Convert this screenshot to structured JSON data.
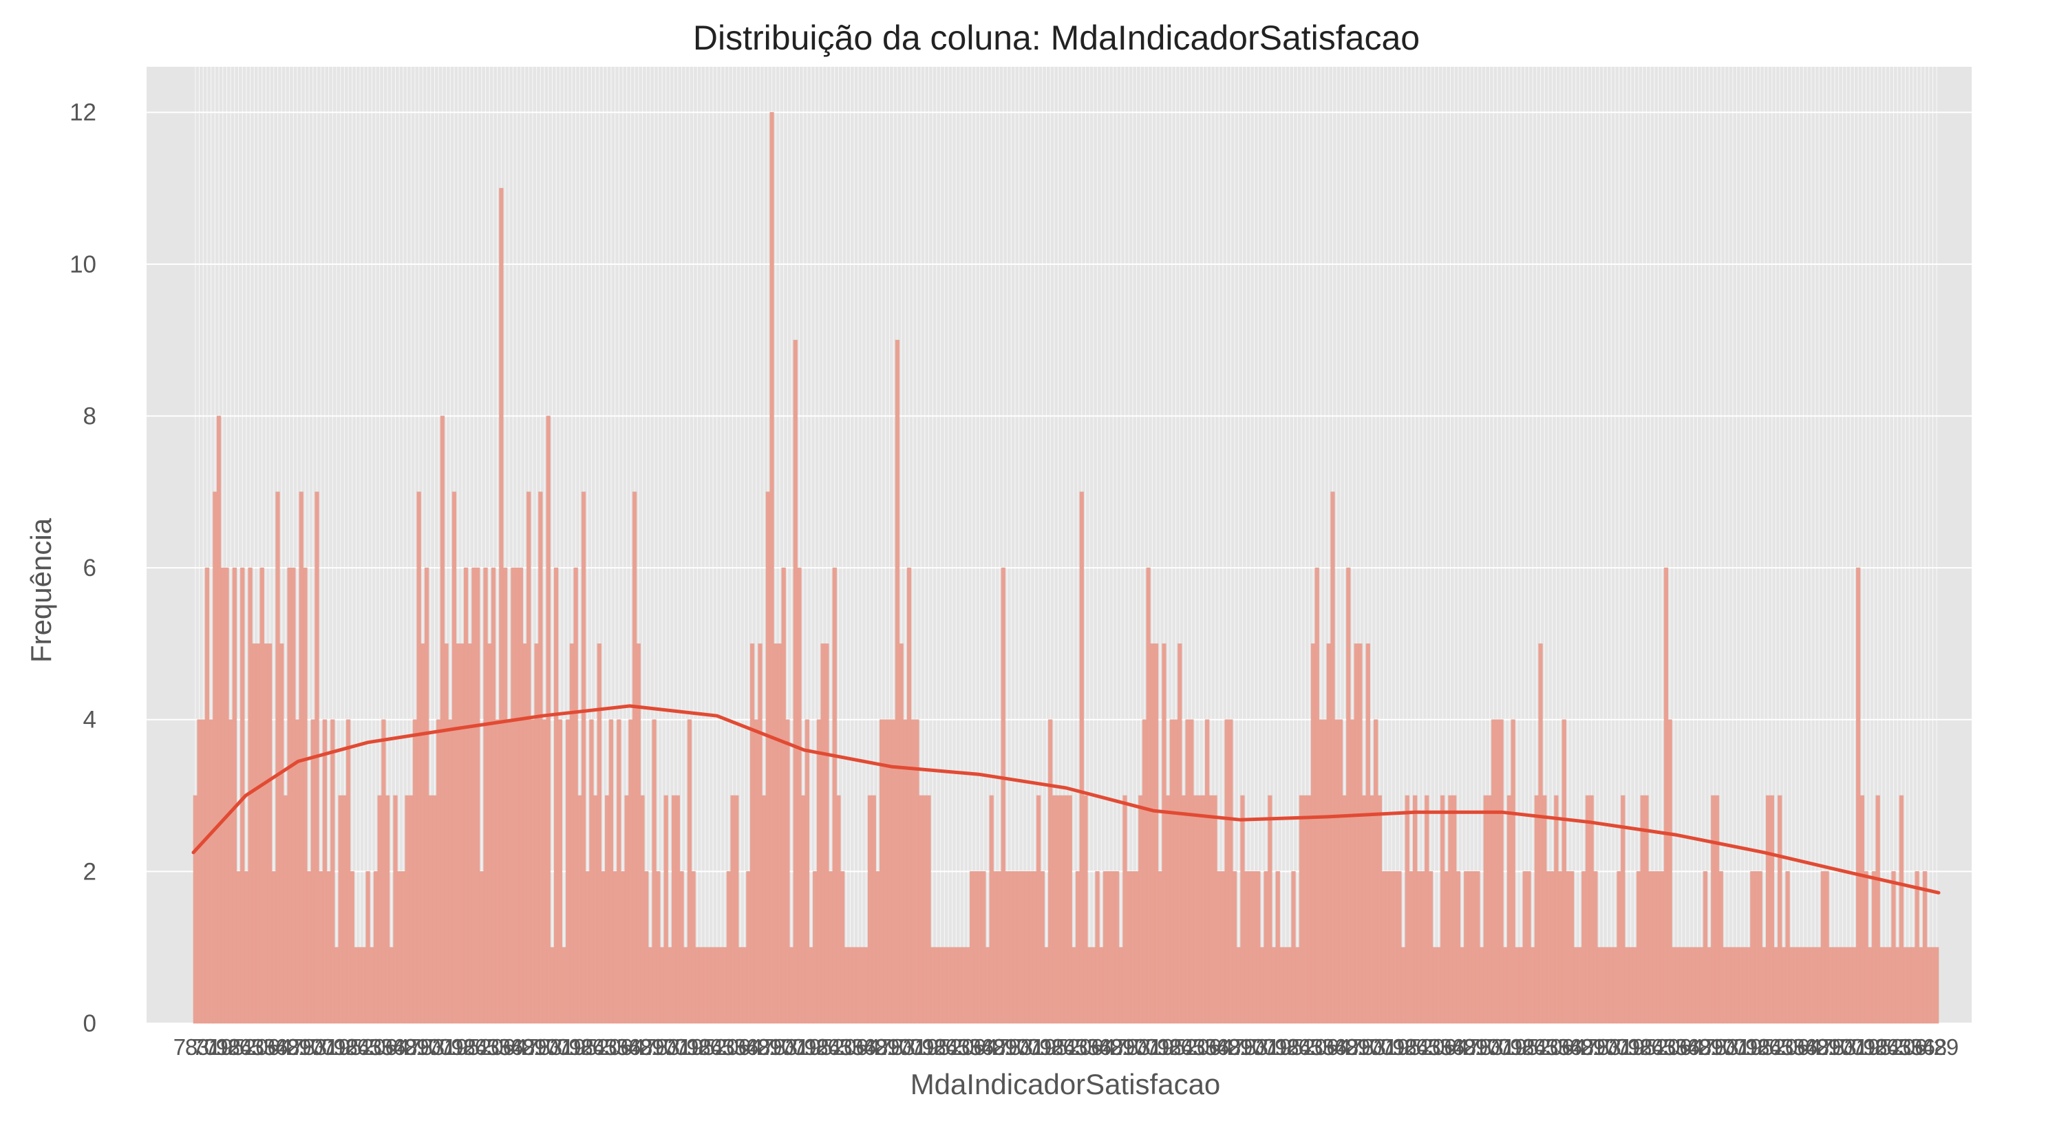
{
  "chart_data": {
    "type": "bar",
    "title": "Distribuição da coluna: MdaIndicadorSatisfacao",
    "xlabel": "MdaIndicadorSatisfacao",
    "ylabel": "Frequência",
    "ylim": [
      0,
      12.6
    ],
    "yticks": [
      "0",
      "2",
      "4",
      "6",
      "8",
      "10",
      "12"
    ],
    "grid": true,
    "legend": "none",
    "colors": {
      "plot_background": "#e5e5e5",
      "grid": "#ffffff",
      "bar_fill": "#e9a193",
      "bar_edge": "#e8a092",
      "kde_line": "#e24a33",
      "text": "#555555",
      "title": "#222222"
    },
    "x_tick_labels_note": "dense overlapping numeric categories, illegible",
    "values": [
      3,
      4,
      4,
      6,
      4,
      7,
      8,
      6,
      6,
      4,
      6,
      2,
      6,
      2,
      6,
      5,
      5,
      6,
      5,
      5,
      2,
      7,
      5,
      3,
      6,
      6,
      4,
      7,
      6,
      2,
      4,
      7,
      2,
      4,
      2,
      4,
      1,
      3,
      3,
      4,
      2,
      1,
      1,
      1,
      2,
      1,
      2,
      3,
      4,
      3,
      1,
      3,
      2,
      2,
      3,
      3,
      4,
      7,
      5,
      6,
      3,
      3,
      4,
      8,
      5,
      4,
      7,
      5,
      5,
      6,
      5,
      6,
      6,
      2,
      6,
      5,
      6,
      4,
      11,
      6,
      4,
      6,
      6,
      6,
      5,
      7,
      4,
      5,
      7,
      4,
      8,
      1,
      6,
      4,
      1,
      4,
      5,
      6,
      3,
      7,
      2,
      4,
      3,
      5,
      2,
      3,
      4,
      2,
      4,
      2,
      3,
      4,
      7,
      5,
      3,
      2,
      1,
      4,
      2,
      1,
      3,
      1,
      3,
      3,
      2,
      1,
      4,
      2,
      1,
      1,
      1,
      1,
      1,
      1,
      1,
      1,
      2,
      3,
      3,
      1,
      1,
      2,
      5,
      4,
      5,
      3,
      7,
      12,
      5,
      5,
      6,
      4,
      1,
      9,
      6,
      3,
      4,
      1,
      2,
      4,
      5,
      5,
      2,
      6,
      3,
      2,
      1,
      1,
      1,
      1,
      1,
      1,
      3,
      3,
      2,
      4,
      4,
      4,
      4,
      9,
      5,
      4,
      6,
      4,
      4,
      3,
      3,
      3,
      1,
      1,
      1,
      1,
      1,
      1,
      1,
      1,
      1,
      1,
      2,
      2,
      2,
      2,
      1,
      3,
      2,
      2,
      6,
      2,
      2,
      2,
      2,
      2,
      2,
      2,
      2,
      3,
      2,
      1,
      4,
      3,
      3,
      3,
      3,
      3,
      1,
      2,
      7,
      3,
      1,
      1,
      2,
      1,
      2,
      2,
      2,
      2,
      1,
      3,
      2,
      2,
      2,
      3,
      4,
      6,
      5,
      5,
      2,
      5,
      3,
      4,
      4,
      5,
      3,
      4,
      4,
      3,
      3,
      3,
      4,
      3,
      3,
      2,
      2,
      4,
      4,
      2,
      1,
      3,
      2,
      2,
      2,
      2,
      1,
      2,
      3,
      1,
      2,
      1,
      1,
      1,
      2,
      1,
      3,
      3,
      3,
      5,
      6,
      4,
      4,
      5,
      7,
      4,
      4,
      3,
      6,
      4,
      5,
      5,
      3,
      5,
      3,
      4,
      3,
      2,
      2,
      2,
      2,
      2,
      1,
      3,
      2,
      3,
      2,
      2,
      3,
      2,
      1,
      1,
      3,
      2,
      3,
      3,
      2,
      1,
      2,
      2,
      2,
      2,
      1,
      3,
      3,
      4,
      4,
      4,
      1,
      3,
      4,
      1,
      1,
      2,
      2,
      1,
      3,
      5,
      3,
      2,
      2,
      3,
      2,
      4,
      2,
      2,
      1,
      1,
      2,
      3,
      3,
      2,
      1,
      1,
      1,
      1,
      1,
      2,
      3,
      1,
      1,
      1,
      2,
      3,
      3,
      2,
      2,
      2,
      2,
      6,
      4,
      1,
      1,
      1,
      1,
      1,
      1,
      1,
      1,
      2,
      1,
      3,
      3,
      2,
      1,
      1,
      1,
      1,
      1,
      1,
      1,
      2,
      2,
      2,
      1,
      3,
      3,
      1,
      3,
      1,
      2,
      1,
      1,
      1,
      1,
      1,
      1,
      1,
      1,
      2,
      2,
      1,
      1,
      1,
      1,
      1,
      1,
      1,
      6,
      3,
      2,
      1,
      2,
      3,
      1,
      1,
      1,
      2,
      1,
      3,
      1,
      1,
      1,
      2,
      1,
      2,
      1,
      1,
      1
    ],
    "kde": {
      "x": [
        0,
        0.03,
        0.06,
        0.1,
        0.15,
        0.2,
        0.25,
        0.3,
        0.35,
        0.4,
        0.45,
        0.5,
        0.55,
        0.6,
        0.65,
        0.7,
        0.75,
        0.8,
        0.85,
        0.9,
        0.95,
        1
      ],
      "y": [
        2.25,
        3.0,
        3.45,
        3.7,
        3.88,
        4.05,
        4.18,
        4.05,
        3.6,
        3.38,
        3.28,
        3.1,
        2.8,
        2.68,
        2.72,
        2.78,
        2.78,
        2.65,
        2.48,
        2.25,
        1.98,
        1.72
      ]
    }
  }
}
